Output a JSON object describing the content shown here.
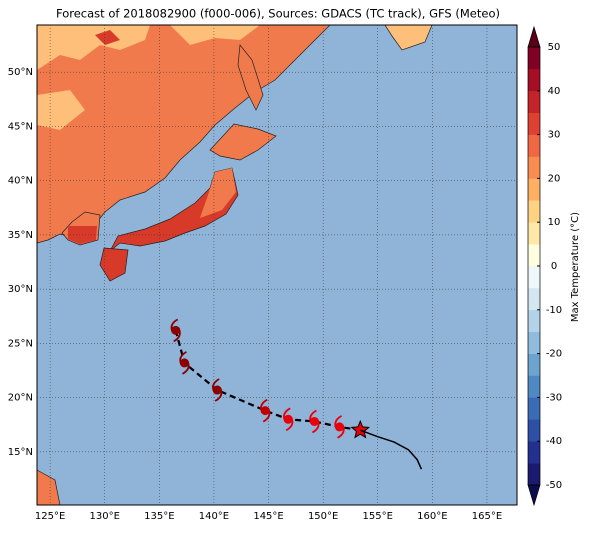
{
  "chart_data": {
    "type": "map",
    "title": "Forecast of 2018082900 (f000-006), Sources: GDACS (TC track), GFS (Meteo)",
    "xlim": [
      123.8,
      167.75
    ],
    "ylim": [
      10.1,
      54.35
    ],
    "xticks": [
      {
        "value": 125,
        "label": "125°E"
      },
      {
        "value": 130,
        "label": "130°E"
      },
      {
        "value": 135,
        "label": "135°E"
      },
      {
        "value": 140,
        "label": "140°E"
      },
      {
        "value": 145,
        "label": "145°E"
      },
      {
        "value": 150,
        "label": "150°E"
      },
      {
        "value": 155,
        "label": "155°E"
      },
      {
        "value": 160,
        "label": "160°E"
      },
      {
        "value": 165,
        "label": "165°E"
      }
    ],
    "yticks": [
      {
        "value": 15,
        "label": "15°N"
      },
      {
        "value": 20,
        "label": "20°N"
      },
      {
        "value": 25,
        "label": "25°N"
      },
      {
        "value": 30,
        "label": "30°N"
      },
      {
        "value": 35,
        "label": "35°N"
      },
      {
        "value": 40,
        "label": "40°N"
      },
      {
        "value": 45,
        "label": "45°N"
      },
      {
        "value": 50,
        "label": "50°N"
      }
    ],
    "grid": true,
    "series": [
      {
        "x": [
          136.5,
          137.3,
          140.3,
          144.7,
          146.8,
          149.2,
          151.5,
          153.4
        ],
        "values": [
          26.2,
          23.2,
          20.7,
          18.8,
          18.0,
          17.8,
          17.3,
          17.0
        ],
        "point_colors": [
          "#8b0000",
          "#8b0000",
          "#8b0000",
          "#c00000",
          "#e8000b",
          "#e8000b",
          "#e8000b",
          "#e8000b"
        ],
        "markers": [
          "cyclone",
          "cyclone",
          "cyclone",
          "cyclone",
          "cyclone",
          "cyclone",
          "cyclone",
          "star"
        ],
        "color": "#000000",
        "dashed": true
      },
      {
        "x": [
          153.4,
          155.0,
          156.5,
          157.8,
          158.6,
          159.0
        ],
        "values": [
          17.0,
          16.4,
          15.9,
          15.2,
          14.3,
          13.4
        ],
        "color": "#000000",
        "dashed": false
      }
    ],
    "colorbar": {
      "label": "Max Temperature (°C)",
      "clim": [
        -50,
        50
      ],
      "ticks": [
        -50,
        -40,
        -30,
        -20,
        -10,
        0,
        10,
        20,
        30,
        40,
        50
      ],
      "colors": [
        "#1a1a6e",
        "#22308f",
        "#2d4fa6",
        "#3a6cb5",
        "#4f89c2",
        "#6da4cf",
        "#8fbcdc",
        "#b2d3e8",
        "#d3e7f1",
        "#eef7fa",
        "#fefde0",
        "#fee8a8",
        "#fed283",
        "#fcb064",
        "#f98d51",
        "#f06843",
        "#de4032",
        "#c4232a",
        "#a50e25",
        "#800026"
      ],
      "under": "#0d0d4d",
      "over": "#5a001a"
    }
  }
}
